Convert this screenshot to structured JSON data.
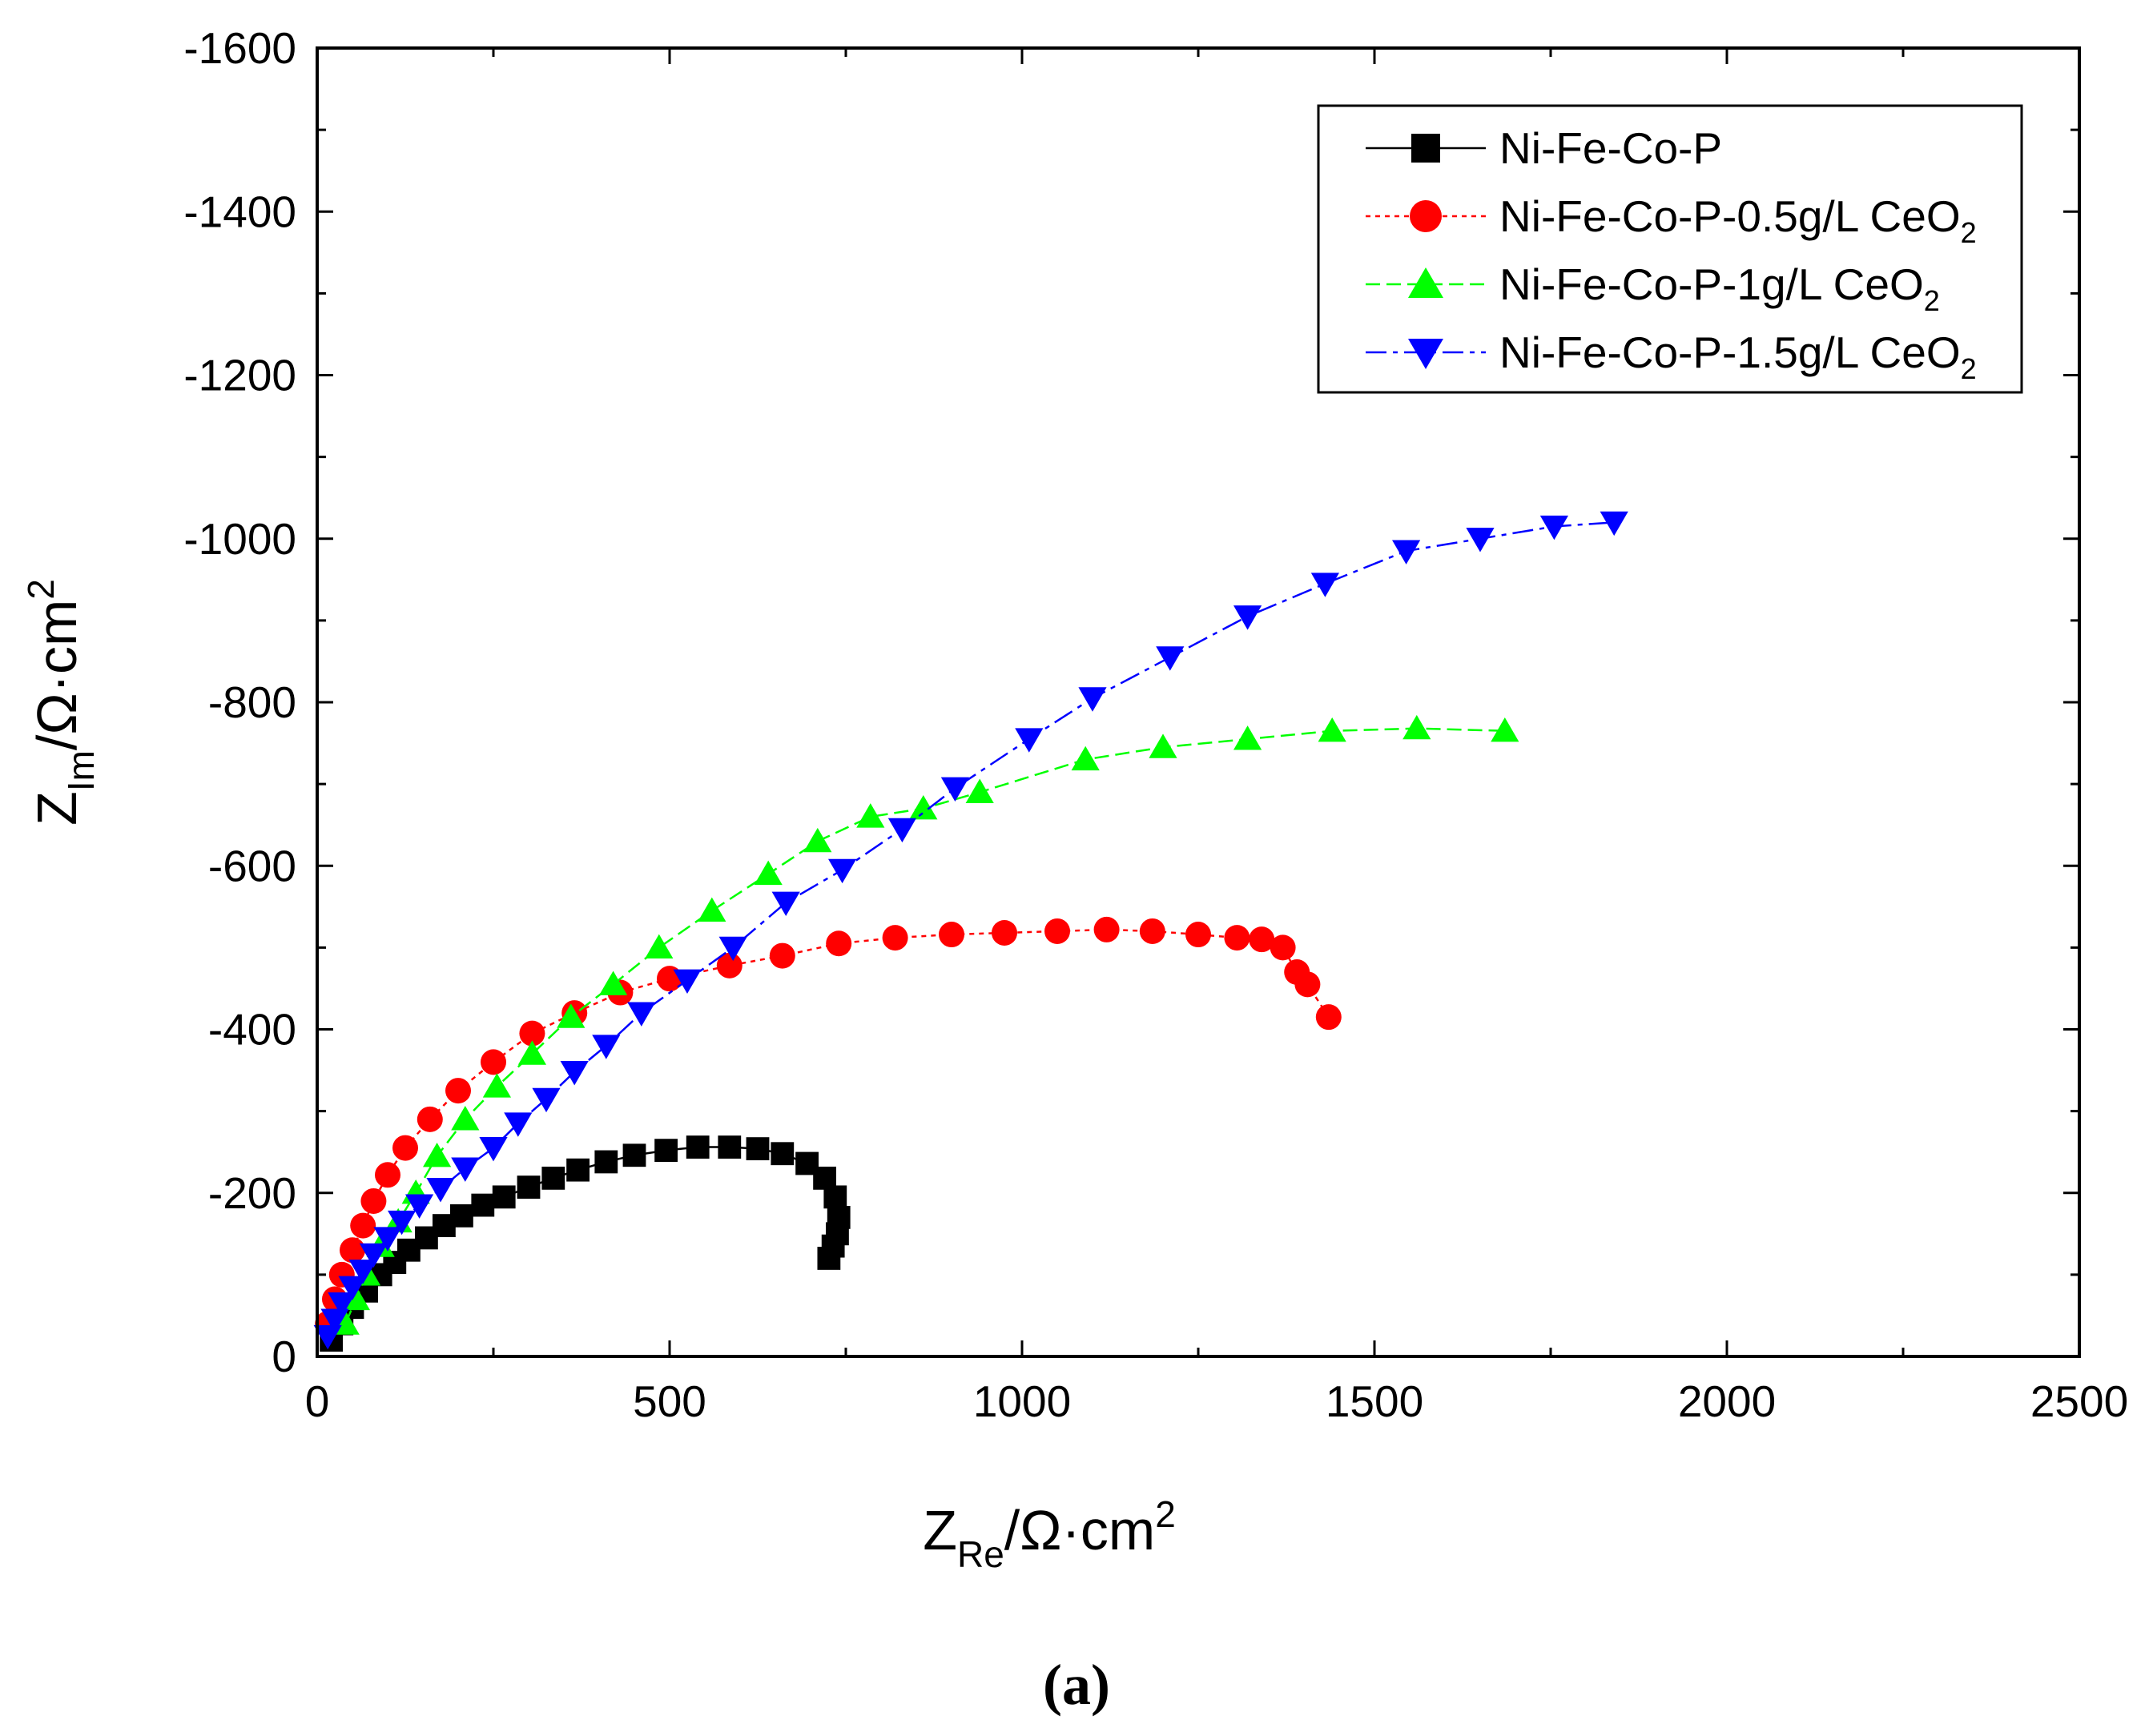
{
  "chart_data": {
    "type": "scatter",
    "title": "",
    "caption": "(a)",
    "xlabel": {
      "main": "Z",
      "sub": "Re",
      "unit": "/Ω·cm",
      "sup": "2"
    },
    "ylabel": {
      "main": "Z",
      "sub": "Im",
      "unit": "/Ω·cm",
      "sup": "2"
    },
    "xlim": [
      0,
      2500
    ],
    "ylim": [
      0,
      -1600
    ],
    "xticks": [
      0,
      500,
      1000,
      1500,
      2000,
      2500
    ],
    "xtick_labels": [
      "0",
      "500",
      "1000",
      "1500",
      "2000",
      "2500"
    ],
    "yticks": [
      0,
      -200,
      -400,
      -600,
      -800,
      -1000,
      -1200,
      -1400,
      -1600
    ],
    "ytick_labels": [
      "0",
      "-200",
      "-400",
      "-600",
      "-800",
      "-1000",
      "-1200",
      "-1400",
      "-1600"
    ],
    "grid": false,
    "legend_position": "top-right",
    "series": [
      {
        "name": "Ni-Fe-Co-P",
        "legend_label": "Ni-Fe-Co-P",
        "legend_sub": "",
        "color": "#000000",
        "marker": "square",
        "x": [
          20,
          35,
          50,
          70,
          90,
          110,
          130,
          155,
          180,
          205,
          235,
          265,
          300,
          335,
          370,
          410,
          450,
          495,
          540,
          585,
          625,
          660,
          695,
          720,
          735,
          740,
          738,
          732,
          726
        ],
        "y": [
          -20,
          -40,
          -60,
          -80,
          -100,
          -115,
          -130,
          -145,
          -160,
          -172,
          -185,
          -195,
          -207,
          -218,
          -228,
          -238,
          -246,
          -252,
          -256,
          -256,
          -254,
          -248,
          -236,
          -218,
          -195,
          -170,
          -150,
          -135,
          -120
        ]
      },
      {
        "name": "Ni-Fe-Co-P-0.5g/L CeO2",
        "legend_label": "Ni-Fe-Co-P-0.5g/L CeO",
        "legend_sub": "2",
        "color": "#ff0000",
        "marker": "circle",
        "x": [
          15,
          25,
          35,
          50,
          65,
          80,
          100,
          125,
          160,
          200,
          250,
          305,
          365,
          430,
          500,
          585,
          660,
          740,
          820,
          900,
          975,
          1050,
          1120,
          1185,
          1250,
          1305,
          1340,
          1370,
          1390,
          1405,
          1435
        ],
        "y": [
          -40,
          -70,
          -100,
          -130,
          -160,
          -190,
          -222,
          -255,
          -290,
          -325,
          -360,
          -395,
          -420,
          -445,
          -462,
          -478,
          -490,
          -505,
          -512,
          -516,
          -518,
          -520,
          -522,
          -520,
          -516,
          -512,
          -510,
          -500,
          -470,
          -455,
          -415
        ]
      },
      {
        "name": "Ni-Fe-Co-P-1g/L CeO2",
        "legend_label": "Ni-Fe-Co-P-1g/L CeO",
        "legend_sub": "2",
        "color": "#00ff00",
        "marker": "triangle-up",
        "x": [
          40,
          55,
          70,
          90,
          115,
          140,
          170,
          210,
          255,
          305,
          360,
          420,
          485,
          560,
          640,
          710,
          785,
          860,
          940,
          1090,
          1200,
          1320,
          1440,
          1560,
          1685
        ],
        "y": [
          -40,
          -70,
          -100,
          -135,
          -165,
          -200,
          -245,
          -290,
          -330,
          -370,
          -415,
          -455,
          -500,
          -545,
          -590,
          -630,
          -660,
          -670,
          -690,
          -730,
          -745,
          -755,
          -765,
          -768,
          -765
        ]
      },
      {
        "name": "Ni-Fe-Co-P-1.5g/L CeO2",
        "legend_label": "Ni-Fe-Co-P-1.5g/L CeO",
        "legend_sub": "2",
        "color": "#0000ff",
        "marker": "triangle-down",
        "x": [
          15,
          25,
          35,
          50,
          65,
          80,
          100,
          120,
          145,
          175,
          210,
          250,
          285,
          325,
          365,
          410,
          460,
          525,
          590,
          665,
          745,
          830,
          905,
          1010,
          1100,
          1210,
          1320,
          1430,
          1545,
          1650,
          1755,
          1840
        ],
        "y": [
          -25,
          -45,
          -65,
          -85,
          -105,
          -125,
          -145,
          -165,
          -185,
          -205,
          -230,
          -255,
          -285,
          -315,
          -348,
          -380,
          -420,
          -460,
          -500,
          -555,
          -595,
          -645,
          -695,
          -755,
          -805,
          -855,
          -905,
          -945,
          -985,
          -1000,
          -1015,
          -1020
        ]
      }
    ]
  }
}
